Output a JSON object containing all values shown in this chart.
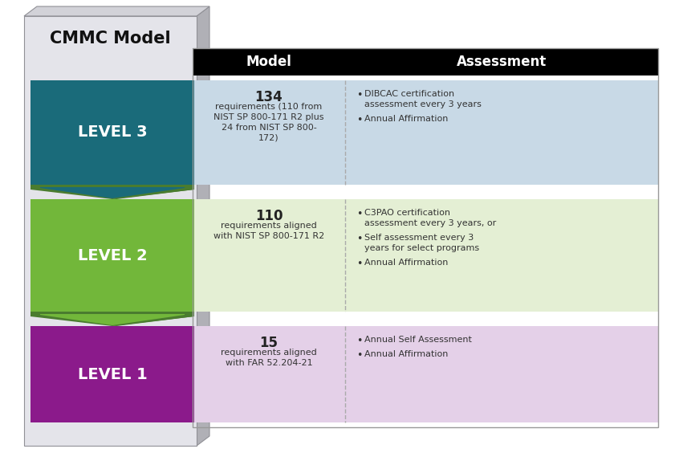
{
  "title": "CMMC Model",
  "header_bg": "#000000",
  "header_model": "Model",
  "header_assessment": "Assessment",
  "header_text_color": "#ffffff",
  "bg_color": "#ffffff",
  "levels": [
    {
      "label": "LEVEL 3",
      "level_bg": "#1a6b7a",
      "arrow_bg": "#4a7c2f",
      "row_bg": "#c8d9e6",
      "model_number": "134",
      "model_text": "requirements (110 from\nNIST SP 800-171 R2 plus\n24 from NIST SP 800-\n172)",
      "assessment_bullets": [
        "DIBCAC certification\nassessment every 3 years",
        "Annual Affirmation"
      ]
    },
    {
      "label": "LEVEL 2",
      "level_bg": "#72b73a",
      "arrow_bg": "#4a7c2f",
      "row_bg": "#e4efd4",
      "model_number": "110",
      "model_text": "requirements aligned\nwith NIST SP 800-171 R2",
      "assessment_bullets": [
        "C3PAO certification\nassessment every 3 years, or",
        "Self assessment every 3\nyears for select programs",
        "Annual Affirmation"
      ]
    },
    {
      "label": "LEVEL 1",
      "level_bg": "#8b1a8b",
      "arrow_bg": "#5a1060",
      "row_bg": "#e4d0e8",
      "model_number": "15",
      "model_text": "requirements aligned\nwith FAR 52.204-21",
      "assessment_bullets": [
        "Annual Self Assessment",
        "Annual Affirmation"
      ]
    }
  ]
}
